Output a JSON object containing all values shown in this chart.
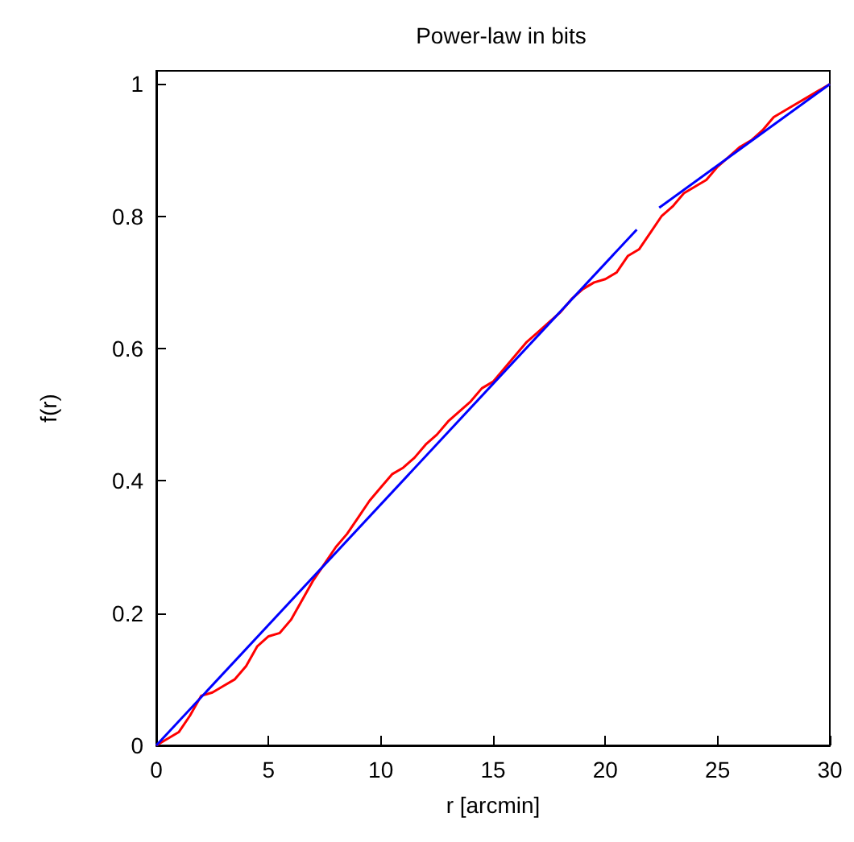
{
  "chart_data": {
    "type": "line",
    "title": "Power-law in bits",
    "xlabel": "r [arcmin]",
    "ylabel": "f(r)",
    "xlim": [
      0,
      30
    ],
    "xticks": [
      0,
      5,
      10,
      15,
      20,
      25,
      30
    ],
    "ylim": [
      0,
      1.02
    ],
    "yticks": [
      0,
      0.2,
      0.4,
      0.6,
      0.8,
      1
    ],
    "marker": "none",
    "line_style": "solid",
    "series": [
      {
        "color": "#ff0000",
        "x": [
          0,
          0.5,
          1,
          1.5,
          2,
          2.5,
          3,
          3.5,
          4,
          4.5,
          5,
          5.5,
          6,
          6.5,
          7,
          7.5,
          8,
          8.5,
          9,
          9.5,
          10,
          10.5,
          11,
          11.5,
          12,
          12.5,
          13,
          13.5,
          14,
          14.5,
          15,
          15.5,
          16,
          16.5,
          17,
          17.5,
          18,
          18.5,
          19,
          19.5,
          20,
          20.5,
          21,
          21.5,
          22,
          22.5,
          23,
          23.5,
          24,
          24.5,
          25,
          25.5,
          26,
          26.5,
          27,
          27.5,
          28,
          28.5,
          29,
          29.5,
          30
        ],
        "values": [
          0,
          0.01,
          0.02,
          0.045,
          0.075,
          0.08,
          0.09,
          0.1,
          0.12,
          0.15,
          0.165,
          0.17,
          0.19,
          0.22,
          0.25,
          0.275,
          0.3,
          0.32,
          0.345,
          0.37,
          0.39,
          0.41,
          0.42,
          0.435,
          0.455,
          0.47,
          0.49,
          0.505,
          0.52,
          0.54,
          0.55,
          0.57,
          0.59,
          0.61,
          0.625,
          0.64,
          0.655,
          0.675,
          0.69,
          0.7,
          0.705,
          0.715,
          0.74,
          0.75,
          0.775,
          0.8,
          0.815,
          0.835,
          0.845,
          0.855,
          0.875,
          0.89,
          0.905,
          0.915,
          0.93,
          0.95,
          0.96,
          0.97,
          0.98,
          0.99,
          1.0
        ]
      },
      {
        "color": "#0000ff",
        "x": [
          0,
          21.4
        ],
        "values": [
          0,
          0.78
        ]
      },
      {
        "color": "#0000ff",
        "x": [
          22.4,
          30
        ],
        "values": [
          0.813,
          1.0
        ]
      }
    ]
  }
}
